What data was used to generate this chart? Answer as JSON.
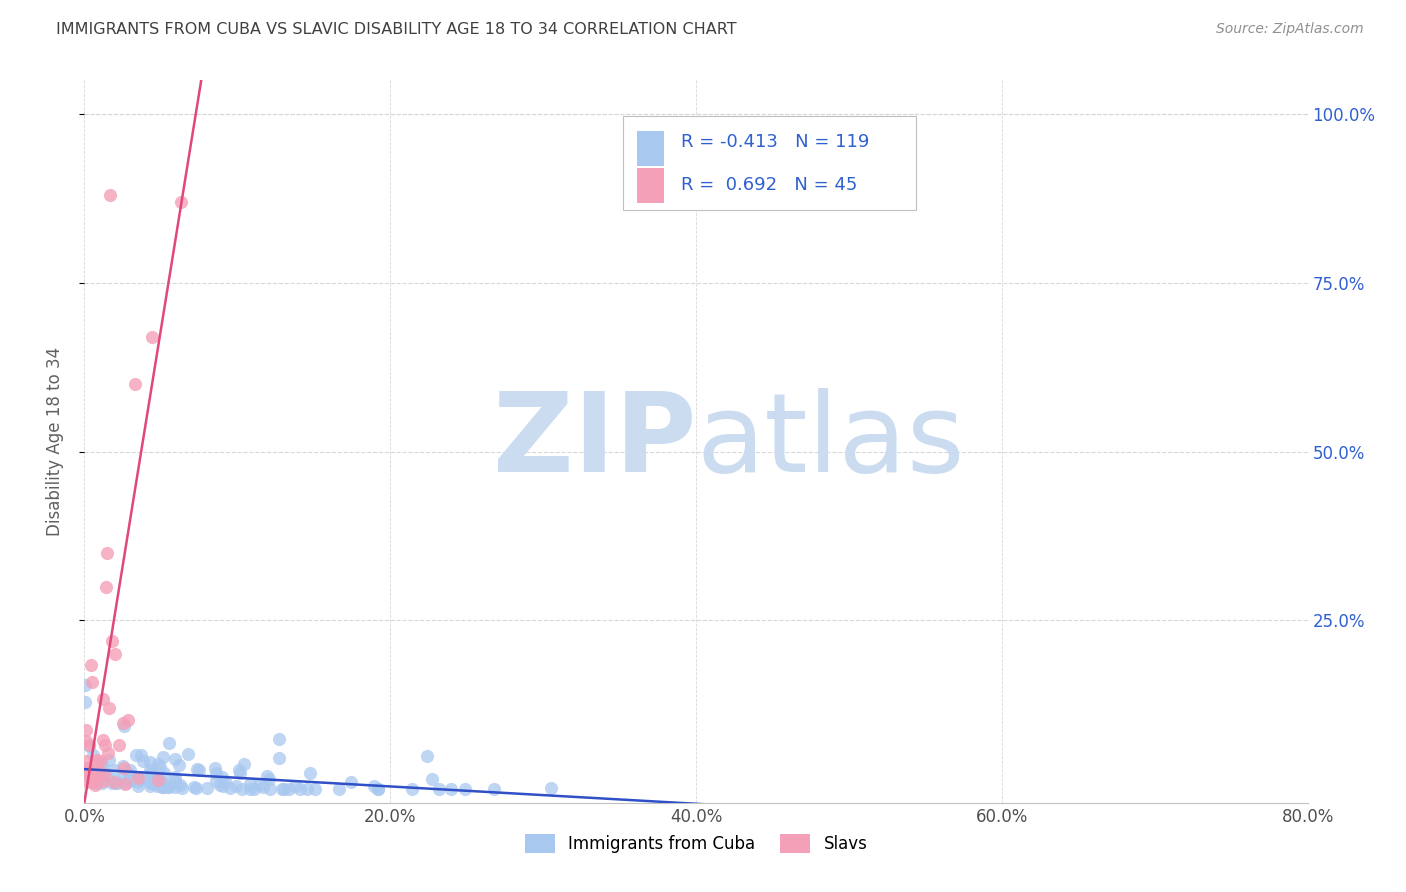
{
  "title": "IMMIGRANTS FROM CUBA VS SLAVIC DISABILITY AGE 18 TO 34 CORRELATION CHART",
  "source": "Source: ZipAtlas.com",
  "ylabel": "Disability Age 18 to 34",
  "xlim": [
    0.0,
    0.8
  ],
  "ylim_low": -0.02,
  "ylim_high": 1.05,
  "xtick_labels": [
    "0.0%",
    "20.0%",
    "40.0%",
    "60.0%",
    "80.0%"
  ],
  "xtick_vals": [
    0.0,
    0.2,
    0.4,
    0.6,
    0.8
  ],
  "ytick_labels": [
    "25.0%",
    "50.0%",
    "75.0%",
    "100.0%"
  ],
  "ytick_vals": [
    0.25,
    0.5,
    0.75,
    1.0
  ],
  "blue_scatter_color": "#a8c8f0",
  "pink_scatter_color": "#f4a0b8",
  "blue_line_color": "#3050c8",
  "pink_line_color": "#e04878",
  "watermark_zip_color": "#ccdcf0",
  "watermark_atlas_color": "#ccdcf0",
  "title_color": "#404040",
  "axis_label_color": "#606060",
  "source_color": "#909090",
  "right_tick_color": "#3060d0",
  "legend_text_color": "#000000",
  "legend_R_color": "#3060d0",
  "grid_color": "#d8d8d8",
  "n_cuba": 119,
  "n_slavs": 45,
  "R_cuba": -0.413,
  "R_slavs": 0.692,
  "seed": 7
}
